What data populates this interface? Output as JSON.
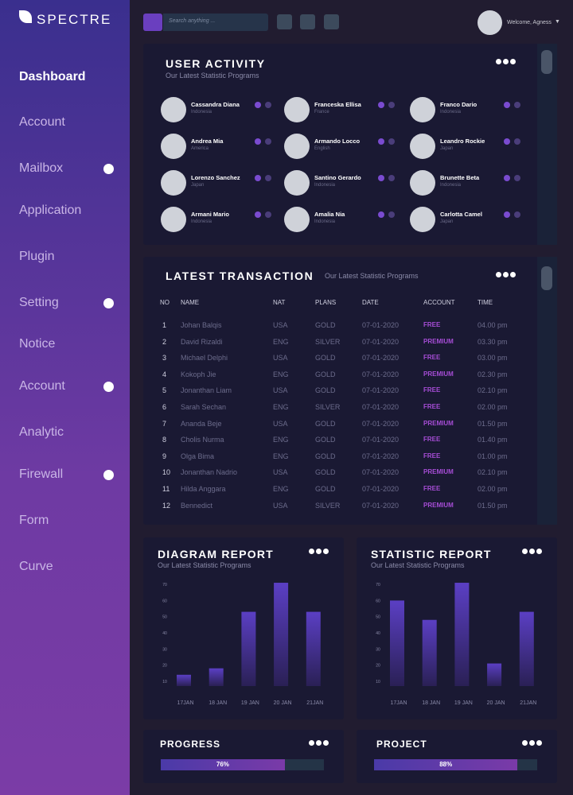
{
  "sidebar": {
    "logo": "SPECTRE",
    "menu": [
      {
        "label": "Dashboard",
        "active": true,
        "dot": false
      },
      {
        "label": "Account",
        "active": false,
        "dot": false
      },
      {
        "label": "Mailbox",
        "active": false,
        "dot": true
      },
      {
        "label": "Application",
        "active": false,
        "dot": false
      },
      {
        "label": "Plugin",
        "active": false,
        "dot": false
      },
      {
        "label": "Setting",
        "active": false,
        "dot": true
      },
      {
        "label": "Notice",
        "active": false,
        "dot": false
      },
      {
        "label": "Account",
        "active": false,
        "dot": true
      },
      {
        "label": "Analytic",
        "active": false,
        "dot": false
      },
      {
        "label": "Firewall",
        "active": false,
        "dot": true
      },
      {
        "label": "Form",
        "active": false,
        "dot": false
      },
      {
        "label": "Curve",
        "active": false,
        "dot": false
      }
    ]
  },
  "topbar": {
    "search_placeholder": "Search anything ...",
    "welcome": "Welcome, Agness"
  },
  "user_activity": {
    "title": "USER ACTIVITY",
    "subtitle": "Our Latest Statistic Programs",
    "users": [
      {
        "name": "Cassandra Diana",
        "country": "Indonesia"
      },
      {
        "name": "Franceska Ellisa",
        "country": "France"
      },
      {
        "name": "Franco Dario",
        "country": "Indonesia"
      },
      {
        "name": "Andrea Mia",
        "country": "America"
      },
      {
        "name": "Armando Locco",
        "country": "English"
      },
      {
        "name": "Leandro Rockie",
        "country": "Japan"
      },
      {
        "name": "Lorenzo Sanchez",
        "country": "Japan"
      },
      {
        "name": "Santino Gerardo",
        "country": "Indonesia"
      },
      {
        "name": "Brunette Beta",
        "country": "Indonesia"
      },
      {
        "name": "Armani Mario",
        "country": "Indonesia"
      },
      {
        "name": "Amalia Nia",
        "country": "Indonesia"
      },
      {
        "name": "Carlotta Camel",
        "country": "Japan"
      }
    ]
  },
  "latest_transaction": {
    "title": "LATEST TRANSACTION",
    "subtitle": "Our Latest Statistic Programs",
    "columns": [
      "NO",
      "NAME",
      "NAT",
      "PLANS",
      "DATE",
      "ACCOUNT",
      "TIME"
    ],
    "rows": [
      [
        1,
        "Johan Balqis",
        "USA",
        "GOLD",
        "07-01-2020",
        "FREE",
        "04.00 pm"
      ],
      [
        2,
        "David Rizaldi",
        "ENG",
        "SILVER",
        "07-01-2020",
        "PREMIUM",
        "03.30 pm"
      ],
      [
        3,
        "Michael Delphi",
        "USA",
        "GOLD",
        "07-01-2020",
        "FREE",
        "03.00 pm"
      ],
      [
        4,
        "Kokoph Jie",
        "ENG",
        "GOLD",
        "07-01-2020",
        "PREMIUM",
        "02.30 pm"
      ],
      [
        5,
        "Jonanthan Liam",
        "USA",
        "GOLD",
        "07-01-2020",
        "FREE",
        "02.10 pm"
      ],
      [
        6,
        "Sarah Sechan",
        "ENG",
        "SILVER",
        "07-01-2020",
        "FREE",
        "02.00 pm"
      ],
      [
        7,
        "Ananda Beje",
        "USA",
        "GOLD",
        "07-01-2020",
        "PREMIUM",
        "01.50 pm"
      ],
      [
        8,
        "Cholis Nurma",
        "ENG",
        "GOLD",
        "07-01-2020",
        "FREE",
        "01.40 pm"
      ],
      [
        9,
        "Olga Bima",
        "ENG",
        "GOLD",
        "07-01-2020",
        "FREE",
        "01.00 pm"
      ],
      [
        10,
        "Jonanthan Nadrio",
        "USA",
        "GOLD",
        "07-01-2020",
        "PREMIUM",
        "02.10 pm"
      ],
      [
        11,
        "Hilda Anggara",
        "ENG",
        "GOLD",
        "07-01-2020",
        "FREE",
        "02.00 pm"
      ],
      [
        12,
        "Bennedict",
        "USA",
        "SILVER",
        "07-01-2020",
        "PREMIUM",
        "01.50 pm"
      ]
    ]
  },
  "diagram_report": {
    "title": "DIAGRAM REPORT",
    "subtitle": "Our Latest Statistic Programs",
    "chart": {
      "type": "bar",
      "categories": [
        "17JAN",
        "18 JAN",
        "19 JAN",
        "20 JAN",
        "21JAN"
      ],
      "values": [
        14,
        18,
        53,
        71,
        53
      ],
      "ylim": [
        7,
        72
      ],
      "yticks": [
        10,
        20,
        30,
        40,
        50,
        60,
        70
      ]
    }
  },
  "statistic_report": {
    "title": "STATISTIC REPORT",
    "subtitle": "Our Latest Statistic Programs",
    "chart": {
      "type": "bar",
      "categories": [
        "17JAN",
        "18 JAN",
        "19 JAN",
        "20 JAN",
        "21JAN"
      ],
      "values": [
        60,
        48,
        71,
        21,
        53
      ],
      "ylim": [
        7,
        72
      ],
      "yticks": [
        10,
        20,
        30,
        40,
        50,
        60,
        70
      ]
    }
  },
  "progress": {
    "title": "PROGRESS",
    "value": 76,
    "value_label": "76%"
  },
  "project": {
    "title": "PROJECT",
    "value": 88,
    "value_label": "88%"
  }
}
